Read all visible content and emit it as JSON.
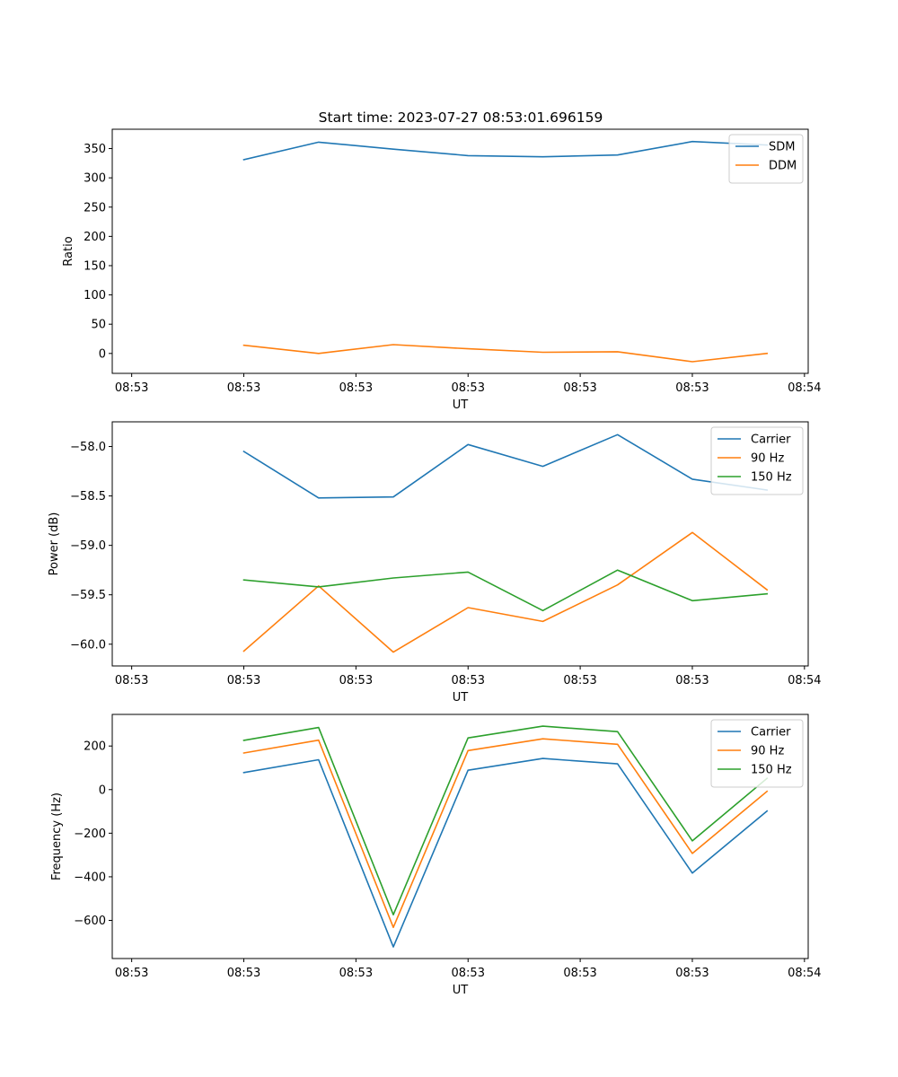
{
  "title": "Start time: 2023-07-27 08:53:01.696159",
  "colors": {
    "blue": "#1f77b4",
    "orange": "#ff7f0e",
    "green": "#2ca02c"
  },
  "chart_data": [
    {
      "type": "line",
      "title": "Start time: 2023-07-27 08:53:01.696159",
      "xlabel": "UT",
      "ylabel": "Ratio",
      "x_tick_labels": [
        "08:53",
        "08:53",
        "08:53",
        "08:53",
        "08:53",
        "08:53",
        "08:54"
      ],
      "xlim": [
        -0.76,
        8.55
      ],
      "x": [
        1,
        2,
        3,
        4,
        5,
        6,
        7,
        8
      ],
      "ylim": [
        -34,
        383
      ],
      "y_ticks": [
        0,
        50,
        100,
        150,
        200,
        250,
        300,
        350
      ],
      "y_tick_labels": [
        "0",
        "50",
        "100",
        "150",
        "200",
        "250",
        "300",
        "350"
      ],
      "legend_position": "upper right",
      "series": [
        {
          "name": "SDM",
          "color": "#1f77b4",
          "values": [
            331,
            361,
            349,
            338,
            336,
            339,
            362,
            356
          ]
        },
        {
          "name": "DDM",
          "color": "#ff7f0e",
          "values": [
            14,
            0,
            15,
            8,
            2,
            3,
            -14,
            0
          ]
        }
      ]
    },
    {
      "type": "line",
      "title": "",
      "xlabel": "UT",
      "ylabel": "Power (dB)",
      "x_tick_labels": [
        "08:53",
        "08:53",
        "08:53",
        "08:53",
        "08:53",
        "08:53",
        "08:54"
      ],
      "xlim": [
        -0.76,
        8.55
      ],
      "x": [
        1,
        2,
        3,
        4,
        5,
        6,
        7,
        8
      ],
      "ylim": [
        -60.22,
        -57.75
      ],
      "y_ticks": [
        -60.0,
        -59.5,
        -59.0,
        -58.5,
        -58.0
      ],
      "y_tick_labels": [
        "−60.0",
        "−59.5",
        "−59.0",
        "−58.5",
        "−58.0"
      ],
      "legend_position": "upper right",
      "series": [
        {
          "name": "Carrier",
          "color": "#1f77b4",
          "values": [
            -58.05,
            -58.52,
            -58.51,
            -57.98,
            -58.2,
            -57.88,
            -58.33,
            -58.44
          ]
        },
        {
          "name": "90 Hz",
          "color": "#ff7f0e",
          "values": [
            -60.07,
            -59.41,
            -60.08,
            -59.63,
            -59.77,
            -59.4,
            -58.87,
            -59.45
          ]
        },
        {
          "name": "150 Hz",
          "color": "#2ca02c",
          "values": [
            -59.35,
            -59.42,
            -59.33,
            -59.27,
            -59.66,
            -59.25,
            -59.56,
            -59.49
          ]
        }
      ]
    },
    {
      "type": "line",
      "title": "",
      "xlabel": "UT",
      "ylabel": "Frequency (Hz)",
      "x_tick_labels": [
        "08:53",
        "08:53",
        "08:53",
        "08:53",
        "08:53",
        "08:53",
        "08:54"
      ],
      "xlim": [
        -0.76,
        8.55
      ],
      "x": [
        1,
        2,
        3,
        4,
        5,
        6,
        7,
        8
      ],
      "ylim": [
        -775,
        345
      ],
      "y_ticks": [
        -600,
        -400,
        -200,
        0,
        200
      ],
      "y_tick_labels": [
        "−600",
        "−400",
        "−200",
        "0",
        "200"
      ],
      "legend_position": "upper right",
      "series": [
        {
          "name": "Carrier",
          "color": "#1f77b4",
          "values": [
            78,
            137,
            -722,
            89,
            143,
            118,
            -383,
            -98
          ]
        },
        {
          "name": "90 Hz",
          "color": "#ff7f0e",
          "values": [
            168,
            227,
            -632,
            179,
            233,
            208,
            -293,
            -8
          ]
        },
        {
          "name": "150 Hz",
          "color": "#2ca02c",
          "values": [
            226,
            285,
            -574,
            237,
            291,
            266,
            -235,
            52
          ]
        }
      ]
    }
  ]
}
